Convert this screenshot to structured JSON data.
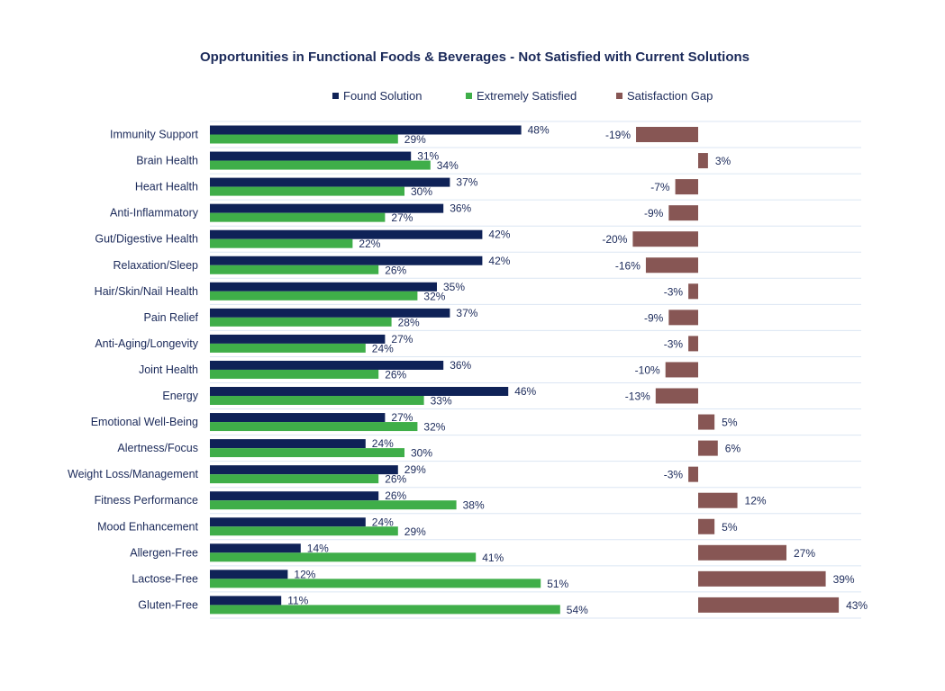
{
  "chart_data": {
    "type": "bar",
    "title": "Opportunities in Functional Foods & Beverages - Not Satisfied with Current Solutions",
    "legend_position": "top",
    "categories": [
      "Immunity Support",
      "Brain Health",
      "Heart Health",
      "Anti-Inflammatory",
      "Gut/Digestive Health",
      "Relaxation/Sleep",
      "Hair/Skin/Nail Health",
      "Pain Relief",
      "Anti-Aging/Longevity",
      "Joint Health",
      "Energy",
      "Emotional Well-Being",
      "Alertness/Focus",
      "Weight Loss/Management",
      "Fitness Performance",
      "Mood Enhancement",
      "Allergen-Free",
      "Lactose-Free",
      "Gluten-Free"
    ],
    "series": [
      {
        "name": "Found Solution",
        "color": "#0f2257",
        "values": [
          48,
          31,
          37,
          36,
          42,
          42,
          35,
          37,
          27,
          36,
          46,
          27,
          24,
          29,
          26,
          24,
          14,
          12,
          11
        ],
        "labels": [
          "48%",
          "31%",
          "37%",
          "36%",
          "42%",
          "42%",
          "35%",
          "37%",
          "27%",
          "36%",
          "46%",
          "27%",
          "24%",
          "29%",
          "26%",
          "24%",
          "14%",
          "12%",
          "11%"
        ]
      },
      {
        "name": "Extremely Satisfied",
        "color": "#3fae49",
        "values": [
          29,
          34,
          30,
          27,
          22,
          26,
          32,
          28,
          24,
          26,
          33,
          32,
          30,
          26,
          38,
          29,
          41,
          51,
          54
        ],
        "labels": [
          "29%",
          "34%",
          "30%",
          "27%",
          "22%",
          "26%",
          "32%",
          "28%",
          "24%",
          "26%",
          "33%",
          "32%",
          "30%",
          "26%",
          "38%",
          "29%",
          "41%",
          "51%",
          "54%"
        ]
      },
      {
        "name": "Satisfaction Gap",
        "color": "#875654",
        "values": [
          -19,
          3,
          -7,
          -9,
          -20,
          -16,
          -3,
          -9,
          -3,
          -10,
          -13,
          5,
          6,
          -3,
          12,
          5,
          27,
          39,
          43
        ],
        "labels": [
          "-19%",
          "3%",
          "-7%",
          "-9%",
          "-20%",
          "-16%",
          "-3%",
          "-9%",
          "-3%",
          "-10%",
          "-13%",
          "5%",
          "6%",
          "-3%",
          "12%",
          "5%",
          "27%",
          "39%",
          "43%"
        ]
      }
    ],
    "xlabel": "",
    "ylabel": "",
    "grid": "horizontal separators",
    "text_color": "#1b2a5a",
    "separator_color": "#dbe6f3"
  }
}
